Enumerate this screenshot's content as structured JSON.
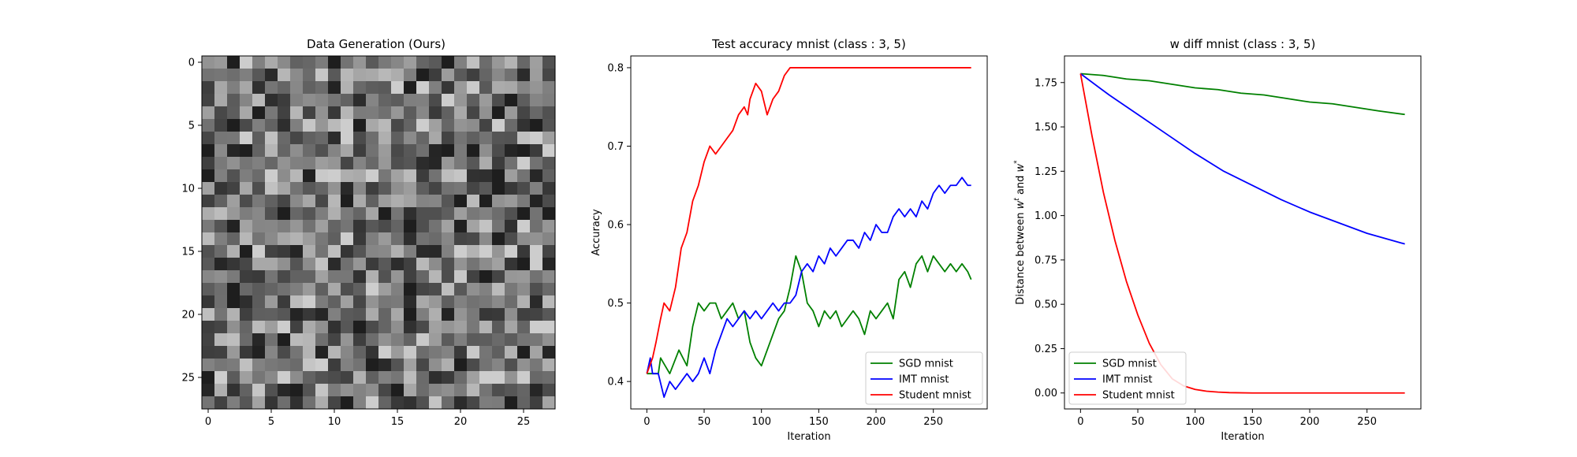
{
  "chart_data": [
    {
      "type": "heatmap",
      "title": "Data Generation (Ours)",
      "xlabel": "",
      "ylabel": "",
      "rows": 28,
      "cols": 28,
      "colormap": "gray",
      "xlim": [
        -0.5,
        27.5
      ],
      "ylim": [
        27.5,
        -0.5
      ],
      "xticks": [
        0,
        5,
        10,
        15,
        20,
        25
      ],
      "yticks": [
        0,
        5,
        10,
        15,
        20,
        25
      ],
      "value_range": [
        0,
        1
      ],
      "seed": 7
    },
    {
      "type": "line",
      "title": "Test accuracy mnist (class : 3, 5)",
      "xlabel": "Iteration",
      "ylabel": "Accuracy",
      "xlim": [
        -14,
        297
      ],
      "ylim": [
        0.365,
        0.815
      ],
      "xticks": [
        0,
        50,
        100,
        150,
        200,
        250
      ],
      "yticks": [
        0.4,
        0.5,
        0.6,
        0.7,
        0.8
      ],
      "grid": false,
      "legend": "lower-right",
      "series": [
        {
          "name": "SGD mnist",
          "color": "#008000",
          "x": [
            0,
            10,
            12,
            20,
            28,
            35,
            40,
            45,
            50,
            55,
            60,
            65,
            70,
            75,
            80,
            85,
            90,
            95,
            100,
            110,
            115,
            120,
            125,
            130,
            135,
            140,
            145,
            150,
            155,
            160,
            165,
            170,
            175,
            180,
            185,
            190,
            195,
            200,
            205,
            210,
            215,
            220,
            225,
            230,
            235,
            240,
            245,
            250,
            255,
            260,
            265,
            270,
            275,
            280,
            283
          ],
          "y": [
            0.41,
            0.41,
            0.43,
            0.41,
            0.44,
            0.42,
            0.47,
            0.5,
            0.49,
            0.5,
            0.5,
            0.48,
            0.49,
            0.5,
            0.48,
            0.49,
            0.45,
            0.43,
            0.42,
            0.46,
            0.48,
            0.49,
            0.52,
            0.56,
            0.54,
            0.5,
            0.49,
            0.47,
            0.49,
            0.48,
            0.49,
            0.47,
            0.48,
            0.49,
            0.48,
            0.46,
            0.49,
            0.48,
            0.49,
            0.5,
            0.48,
            0.53,
            0.54,
            0.52,
            0.55,
            0.56,
            0.54,
            0.56,
            0.55,
            0.54,
            0.55,
            0.54,
            0.55,
            0.54,
            0.53
          ]
        },
        {
          "name": "IMT mnist",
          "color": "#0000ff",
          "x": [
            0,
            3,
            5,
            10,
            15,
            20,
            25,
            30,
            35,
            40,
            45,
            50,
            55,
            60,
            65,
            70,
            75,
            80,
            85,
            90,
            95,
            100,
            105,
            110,
            115,
            120,
            125,
            130,
            135,
            140,
            145,
            150,
            155,
            160,
            165,
            170,
            175,
            180,
            185,
            190,
            195,
            200,
            205,
            210,
            215,
            220,
            225,
            230,
            235,
            240,
            245,
            250,
            255,
            260,
            265,
            270,
            275,
            280,
            283
          ],
          "y": [
            0.41,
            0.43,
            0.41,
            0.41,
            0.38,
            0.4,
            0.39,
            0.4,
            0.41,
            0.4,
            0.41,
            0.43,
            0.41,
            0.44,
            0.46,
            0.48,
            0.47,
            0.48,
            0.49,
            0.48,
            0.49,
            0.48,
            0.49,
            0.5,
            0.49,
            0.5,
            0.5,
            0.51,
            0.54,
            0.55,
            0.54,
            0.56,
            0.55,
            0.57,
            0.56,
            0.57,
            0.58,
            0.58,
            0.57,
            0.59,
            0.58,
            0.6,
            0.59,
            0.59,
            0.61,
            0.62,
            0.61,
            0.62,
            0.61,
            0.63,
            0.62,
            0.64,
            0.65,
            0.64,
            0.65,
            0.65,
            0.66,
            0.65,
            0.65
          ]
        },
        {
          "name": "Student mnist",
          "color": "#ff0000",
          "x": [
            0,
            5,
            8,
            12,
            15,
            20,
            25,
            28,
            30,
            35,
            40,
            45,
            50,
            55,
            60,
            65,
            70,
            75,
            80,
            85,
            88,
            90,
            95,
            100,
            105,
            110,
            115,
            120,
            125,
            283
          ],
          "y": [
            0.41,
            0.43,
            0.45,
            0.48,
            0.5,
            0.49,
            0.52,
            0.55,
            0.57,
            0.59,
            0.63,
            0.65,
            0.68,
            0.7,
            0.69,
            0.7,
            0.71,
            0.72,
            0.74,
            0.75,
            0.74,
            0.76,
            0.78,
            0.77,
            0.74,
            0.76,
            0.77,
            0.79,
            0.8,
            0.8
          ]
        }
      ]
    },
    {
      "type": "line",
      "title": "w diff mnist (class : 3, 5)",
      "xlabel": "Iteration",
      "ylabel_prefix": "Distance between ",
      "ylabel_w1": "w",
      "ylabel_sup1": "t",
      "ylabel_and": " and ",
      "ylabel_w2": "w",
      "ylabel_sup2": "*",
      "xlim": [
        -14,
        297
      ],
      "ylim": [
        -0.09,
        1.9
      ],
      "xticks": [
        0,
        50,
        100,
        150,
        200,
        250
      ],
      "yticks": [
        "0.00",
        "0.25",
        "0.50",
        "0.75",
        "1.00",
        "1.25",
        "1.50",
        "1.75"
      ],
      "grid": false,
      "legend": "lower-left",
      "series": [
        {
          "name": "SGD mnist",
          "color": "#008000",
          "x": [
            0,
            20,
            40,
            60,
            80,
            100,
            120,
            140,
            160,
            180,
            200,
            220,
            240,
            260,
            283
          ],
          "y": [
            1.8,
            1.79,
            1.77,
            1.76,
            1.74,
            1.72,
            1.71,
            1.69,
            1.68,
            1.66,
            1.64,
            1.63,
            1.61,
            1.59,
            1.57
          ]
        },
        {
          "name": "IMT mnist",
          "color": "#0000ff",
          "x": [
            0,
            25,
            50,
            75,
            100,
            125,
            150,
            175,
            200,
            225,
            250,
            283
          ],
          "y": [
            1.8,
            1.68,
            1.57,
            1.46,
            1.35,
            1.25,
            1.17,
            1.09,
            1.02,
            0.96,
            0.9,
            0.84
          ]
        },
        {
          "name": "Student mnist",
          "color": "#ff0000",
          "x": [
            0,
            10,
            20,
            30,
            40,
            50,
            60,
            70,
            80,
            90,
            100,
            110,
            120,
            130,
            150,
            200,
            283
          ],
          "y": [
            1.8,
            1.45,
            1.13,
            0.86,
            0.63,
            0.44,
            0.28,
            0.16,
            0.08,
            0.04,
            0.02,
            0.01,
            0.005,
            0.002,
            0.0,
            0.0,
            0.0
          ]
        }
      ]
    }
  ]
}
